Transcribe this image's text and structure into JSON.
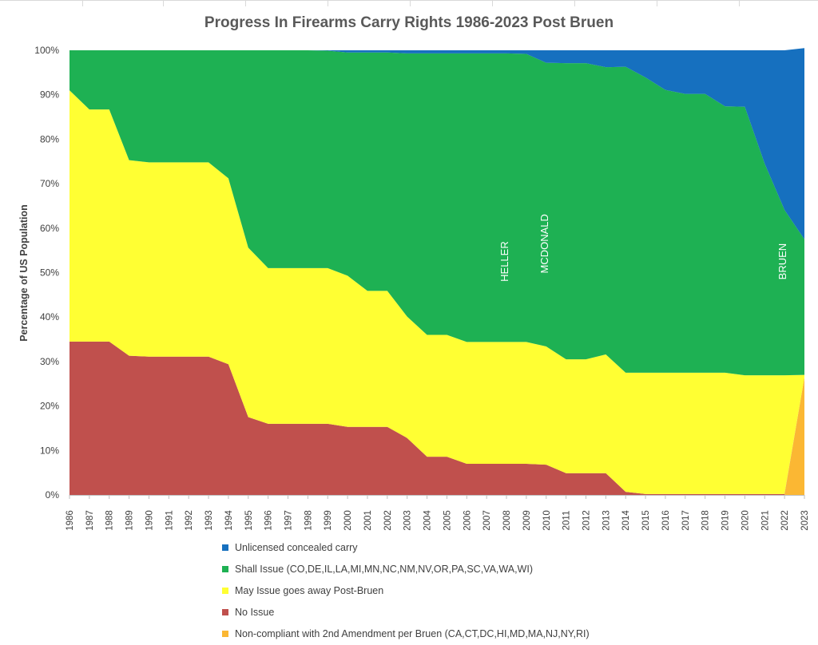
{
  "chart_data": {
    "type": "area",
    "stacked": true,
    "title": "Progress In Firearms Carry Rights 1986-2023 Post Bruen",
    "ylabel": "Percentage of US Population",
    "xlabel": "",
    "ylim": [
      0,
      100
    ],
    "y_ticks": [
      "0%",
      "10%",
      "20%",
      "30%",
      "40%",
      "50%",
      "60%",
      "70%",
      "80%",
      "90%",
      "100%"
    ],
    "x": [
      "1986",
      "1987",
      "1988",
      "1989",
      "1990",
      "1991",
      "1992",
      "1993",
      "1994",
      "1995",
      "1996",
      "1997",
      "1998",
      "1999",
      "2000",
      "2001",
      "2002",
      "2003",
      "2004",
      "2005",
      "2006",
      "2007",
      "2008",
      "2009",
      "2010",
      "2011",
      "2012",
      "2013",
      "2014",
      "2015",
      "2016",
      "2017",
      "2018",
      "2019",
      "2020",
      "2021",
      "2022",
      "2023"
    ],
    "series": [
      {
        "name": "Non-compliant with 2nd Amendment per Bruen (CA,CT,DC,HI,MD,MA,NJ,NY,RI)",
        "color": "#fbb733",
        "values": [
          0,
          0,
          0,
          0,
          0,
          0,
          0,
          0,
          0,
          0,
          0,
          0,
          0,
          0,
          0,
          0,
          0,
          0,
          0,
          0,
          0,
          0,
          0,
          0,
          0,
          0,
          0,
          0,
          0,
          0,
          0,
          0,
          0,
          0,
          0,
          0,
          0,
          26.5
        ]
      },
      {
        "name": "No Issue",
        "color": "#c0504d",
        "values": [
          34.5,
          34.5,
          34.5,
          31.3,
          31.1,
          31.1,
          31.1,
          31.1,
          29.4,
          17.5,
          16,
          16,
          16,
          16,
          15.3,
          15.3,
          15.3,
          12.8,
          8.6,
          8.6,
          7,
          7,
          7,
          7,
          6.8,
          4.9,
          4.9,
          4.9,
          0.7,
          0.2,
          0.2,
          0.2,
          0.2,
          0.2,
          0.2,
          0.2,
          0.2,
          0
        ]
      },
      {
        "name": "May Issue goes away Post-Bruen",
        "color": "#ffff33",
        "values": [
          56.5,
          52.2,
          52.2,
          44,
          43.7,
          43.7,
          43.7,
          43.7,
          41.8,
          38.1,
          35,
          35,
          35,
          35,
          34,
          30.6,
          30.6,
          27.3,
          27.4,
          27.4,
          27.4,
          27.4,
          27.4,
          27.4,
          26.6,
          25.6,
          25.6,
          26.7,
          26.8,
          27.3,
          27.3,
          27.3,
          27.3,
          27.3,
          26.7,
          26.7,
          26.7,
          0.5
        ]
      },
      {
        "name": "Shall Issue (CO,DE,IL,LA,MI,MN,NC,NM,NV,OR,PA,SC,VA,WA,WI)",
        "color": "#1eb153",
        "values": [
          9,
          13.3,
          13.3,
          24.7,
          25.2,
          25.2,
          25.2,
          25.2,
          28.8,
          44.4,
          49,
          49,
          49,
          48.9,
          50.2,
          53.6,
          53.6,
          59.2,
          63.3,
          63.3,
          64.9,
          64.9,
          64.9,
          64.8,
          63.8,
          66.6,
          66.6,
          64.6,
          68.8,
          66.4,
          63.6,
          62.7,
          62.7,
          59.9,
          60.4,
          47.6,
          37.2,
          30.5
        ]
      },
      {
        "name": "Unlicensed concealed carry",
        "color": "#1670bf",
        "values": [
          0,
          0,
          0,
          0,
          0,
          0,
          0,
          0,
          0,
          0,
          0,
          0,
          0,
          0.1,
          0.5,
          0.5,
          0.5,
          0.7,
          0.7,
          0.7,
          0.7,
          0.7,
          0.7,
          0.8,
          2.8,
          2.9,
          2.9,
          3.8,
          3.7,
          6.1,
          8.9,
          9.8,
          9.8,
          12.6,
          12.7,
          25.5,
          35.9,
          43
        ]
      }
    ],
    "annotations": [
      {
        "text": "HELLER",
        "x": "2008",
        "y": 52.5
      },
      {
        "text": "MCDONALD",
        "x": "2010",
        "y": 56.5
      },
      {
        "text": "BRUEN",
        "x": "2022",
        "y": 52.5
      }
    ],
    "legend_position": "bottom",
    "grid": false
  },
  "legend_order": [
    4,
    3,
    2,
    1,
    0
  ]
}
